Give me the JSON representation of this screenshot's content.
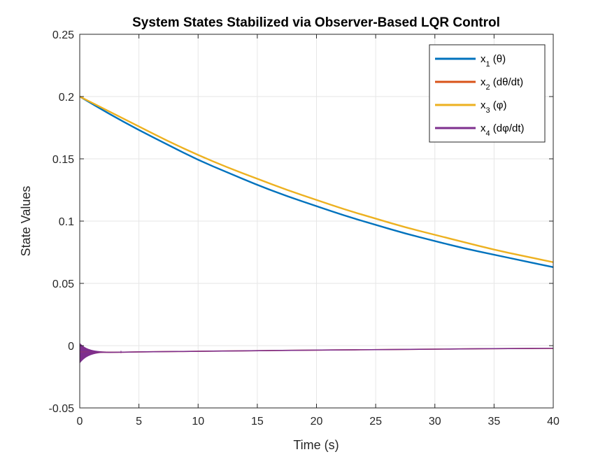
{
  "chart_data": {
    "type": "line",
    "title": "System States Stabilized via Observer-Based LQR Control",
    "xlabel": "Time (s)",
    "ylabel": "State Values",
    "xlim": [
      0,
      40
    ],
    "ylim": [
      -0.05,
      0.25
    ],
    "xticks": [
      0,
      5,
      10,
      15,
      20,
      25,
      30,
      35,
      40
    ],
    "xtick_labels": [
      "0",
      "5",
      "10",
      "15",
      "20",
      "25",
      "30",
      "35",
      "40"
    ],
    "yticks": [
      -0.05,
      0,
      0.05,
      0.1,
      0.15,
      0.2,
      0.25
    ],
    "ytick_labels": [
      "-0.05",
      "0",
      "0.05",
      "0.1",
      "0.15",
      "0.2",
      "0.25"
    ],
    "grid": true,
    "legend_position": "top-right",
    "x": [
      0,
      2.5,
      5,
      7.5,
      10,
      12.5,
      15,
      17.5,
      20,
      22.5,
      25,
      27.5,
      30,
      32.5,
      35,
      37.5,
      40
    ],
    "series": [
      {
        "name": "x1 (θ)",
        "legend_main": "x",
        "legend_sub": "1",
        "legend_rest": " (θ)",
        "color": "#0072BD",
        "values": [
          0.2,
          0.186,
          0.173,
          0.161,
          0.149,
          0.139,
          0.129,
          0.12,
          0.112,
          0.104,
          0.097,
          0.09,
          0.084,
          0.078,
          0.073,
          0.068,
          0.063
        ]
      },
      {
        "name": "x2 (dθ/dt)",
        "legend_main": "x",
        "legend_sub": "2",
        "legend_rest": " (dθ/dt)",
        "color": "#D95319",
        "values": [
          -0.005,
          -0.0055,
          -0.005,
          -0.0048,
          -0.0045,
          -0.0043,
          -0.004,
          -0.0038,
          -0.0036,
          -0.0034,
          -0.0032,
          -0.003,
          -0.0028,
          -0.0026,
          -0.0024,
          -0.0023,
          -0.0022
        ]
      },
      {
        "name": "x3 (φ)",
        "legend_main": "x",
        "legend_sub": "3",
        "legend_rest": " (φ)",
        "color": "#EDB120",
        "values": [
          0.2,
          0.188,
          0.176,
          0.164,
          0.153,
          0.143,
          0.134,
          0.125,
          0.117,
          0.109,
          0.102,
          0.095,
          0.089,
          0.083,
          0.077,
          0.072,
          0.067
        ]
      },
      {
        "name": "x4 (dφ/dt)",
        "legend_main": "x",
        "legend_sub": "4",
        "legend_rest": " (dφ/dt)",
        "color": "#7E2F8E",
        "values": [
          -0.005,
          -0.0055,
          -0.005,
          -0.0048,
          -0.0045,
          -0.0043,
          -0.004,
          -0.0038,
          -0.0036,
          -0.0034,
          -0.0032,
          -0.003,
          -0.0028,
          -0.0026,
          -0.0024,
          -0.0023,
          -0.0021
        ]
      }
    ]
  }
}
